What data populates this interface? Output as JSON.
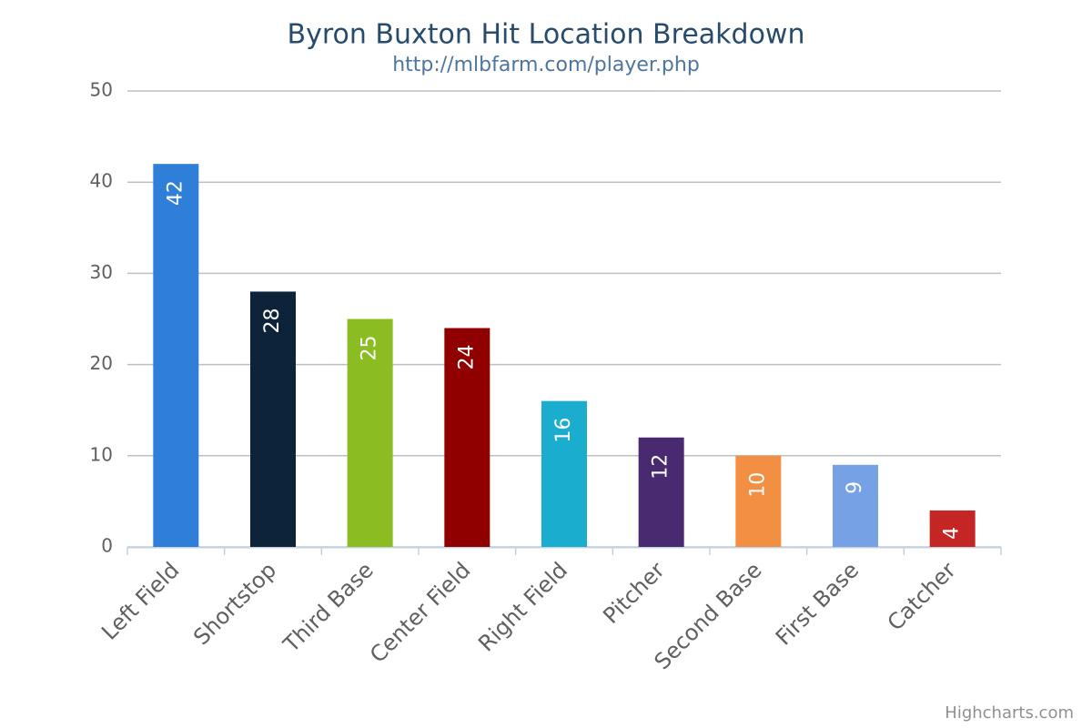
{
  "chart_data": {
    "type": "bar",
    "title": "Byron Buxton Hit Location Breakdown",
    "subtitle": "http://mlbfarm.com/player.php",
    "categories": [
      "Left Field",
      "Shortstop",
      "Third Base",
      "Center Field",
      "Right Field",
      "Pitcher",
      "Second Base",
      "First Base",
      "Catcher"
    ],
    "values": [
      42,
      28,
      25,
      24,
      16,
      12,
      10,
      9,
      4
    ],
    "colors": [
      "#2f7ed8",
      "#0d233a",
      "#8bbc21",
      "#910000",
      "#1aadce",
      "#492970",
      "#f28f43",
      "#77a1e5",
      "#c42525"
    ],
    "ylim": [
      0,
      50
    ],
    "yticks": [
      0,
      10,
      20,
      30,
      40,
      50
    ],
    "grid": true,
    "credits": "Highcharts.com"
  }
}
